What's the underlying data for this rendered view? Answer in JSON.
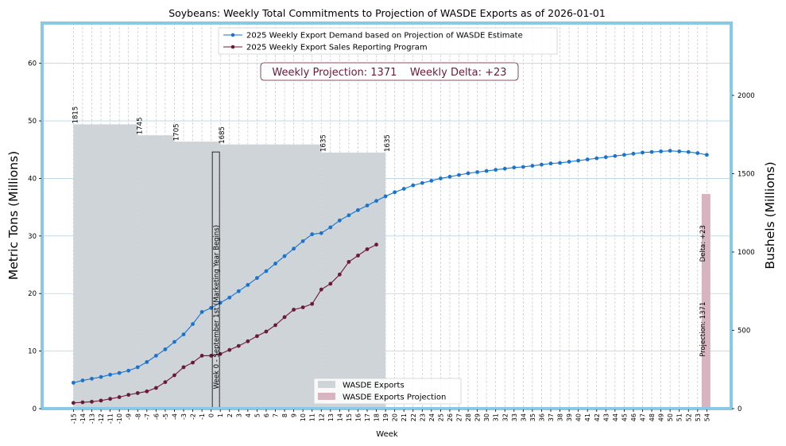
{
  "chart_data": {
    "type": "line",
    "title": "Soybeans: Weekly Total Commitments to Projection of WASDE Exports as of 2026-01-01",
    "xlabel": "Week",
    "ylabel": "Metric Tons (Millions)",
    "ylabel_right": "Bushels (Millions)",
    "ylim": [
      0,
      67
    ],
    "ylim_right": [
      0,
      2462
    ],
    "yticks": [
      0,
      10,
      20,
      30,
      40,
      50,
      60
    ],
    "yticks_right": [
      0,
      500,
      1000,
      1500,
      2000
    ],
    "x_weeks": [
      -15,
      -14,
      -13,
      -12,
      -11,
      -10,
      -9,
      -8,
      -7,
      -6,
      -5,
      -4,
      -3,
      -2,
      -1,
      0,
      1,
      2,
      3,
      4,
      5,
      6,
      7,
      8,
      9,
      10,
      11,
      12,
      13,
      14,
      15,
      16,
      17,
      18,
      19,
      20,
      21,
      22,
      23,
      24,
      25,
      26,
      27,
      28,
      29,
      30,
      31,
      32,
      33,
      34,
      35,
      36,
      37,
      38,
      39,
      40,
      41,
      42,
      43,
      44,
      45,
      46,
      47,
      48,
      49,
      50,
      51,
      52,
      53,
      54
    ],
    "grid": true,
    "legend_top": {
      "placement": "top-center",
      "entries": [
        "2025 Weekly Export Demand based on Projection of WASDE Estimate",
        "2025 Weekly Export Sales Reporting Program"
      ]
    },
    "legend_bottom": {
      "placement": "bottom-center",
      "entries": [
        "WASDE Exports",
        "WASDE Exports Projection"
      ]
    },
    "annotation_box": "Weekly Projection: 1371    Weekly Delta: +23",
    "marketing_year_label": "Week 0 - September 1st (Marketing Year Begins)",
    "wasde_bars": [
      {
        "start_week": -15,
        "end_week": -8,
        "value_mt": 49.4,
        "label": "1815"
      },
      {
        "start_week": -8,
        "end_week": -4,
        "value_mt": 47.5,
        "label": "1745"
      },
      {
        "start_week": -4,
        "end_week": 1,
        "value_mt": 46.4,
        "label": "1705"
      },
      {
        "start_week": 1,
        "end_week": 12,
        "value_mt": 45.9,
        "label": "1685"
      },
      {
        "start_week": 12,
        "end_week": 19,
        "value_mt": 44.5,
        "label": "1635"
      },
      {
        "start_week": 19,
        "end_week": 19,
        "value_mt": 44.5,
        "label": "1635"
      }
    ],
    "projection_bar": {
      "week": 54,
      "value_mt": 37.3,
      "labels": [
        "Projection: 1371",
        "Delta: +23"
      ]
    },
    "series": [
      {
        "name": "2025 Weekly Export Demand based on Projection of WASDE Estimate",
        "color": "#1874cd",
        "x": [
          -15,
          -14,
          -13,
          -12,
          -11,
          -10,
          -9,
          -8,
          -7,
          -6,
          -5,
          -4,
          -3,
          -2,
          -1,
          0,
          1,
          2,
          3,
          4,
          5,
          6,
          7,
          8,
          9,
          10,
          11,
          12,
          13,
          14,
          15,
          16,
          17,
          18,
          19,
          20,
          21,
          22,
          23,
          24,
          25,
          26,
          27,
          28,
          29,
          30,
          31,
          32,
          33,
          34,
          35,
          36,
          37,
          38,
          39,
          40,
          41,
          42,
          43,
          44,
          45,
          46,
          47,
          48,
          49,
          50,
          51,
          52,
          53,
          54
        ],
        "values": [
          4.5,
          4.9,
          5.2,
          5.5,
          5.9,
          6.2,
          6.6,
          7.2,
          8.1,
          9.2,
          10.3,
          11.6,
          12.9,
          14.7,
          16.8,
          17.5,
          18.4,
          19.3,
          20.4,
          21.5,
          22.7,
          23.9,
          25.2,
          26.5,
          27.8,
          29.1,
          30.3,
          30.5,
          31.5,
          32.7,
          33.6,
          34.5,
          35.3,
          36.1,
          36.9,
          37.6,
          38.2,
          38.8,
          39.2,
          39.6,
          40.0,
          40.3,
          40.6,
          40.9,
          41.1,
          41.3,
          41.5,
          41.7,
          41.9,
          42.0,
          42.2,
          42.4,
          42.6,
          42.7,
          42.9,
          43.1,
          43.3,
          43.5,
          43.7,
          43.9,
          44.1,
          44.3,
          44.5,
          44.6,
          44.7,
          44.8,
          44.7,
          44.6,
          44.4,
          44.1
        ]
      },
      {
        "name": "2025 Weekly Export Sales Reporting Program",
        "color": "#6b1a35",
        "x": [
          -15,
          -14,
          -13,
          -12,
          -11,
          -10,
          -9,
          -8,
          -7,
          -6,
          -5,
          -4,
          -3,
          -2,
          -1,
          0,
          1,
          2,
          3,
          4,
          5,
          6,
          7,
          8,
          9,
          10,
          11,
          12,
          13,
          14,
          15,
          16,
          17,
          18
        ],
        "values": [
          1.0,
          1.1,
          1.2,
          1.4,
          1.7,
          2.0,
          2.4,
          2.7,
          3.0,
          3.6,
          4.6,
          5.8,
          7.2,
          8.0,
          9.2,
          9.2,
          9.5,
          10.2,
          10.9,
          11.7,
          12.6,
          13.4,
          14.5,
          15.9,
          17.2,
          17.6,
          18.2,
          20.7,
          21.7,
          23.3,
          25.5,
          26.6,
          27.7,
          28.5
        ]
      }
    ]
  }
}
